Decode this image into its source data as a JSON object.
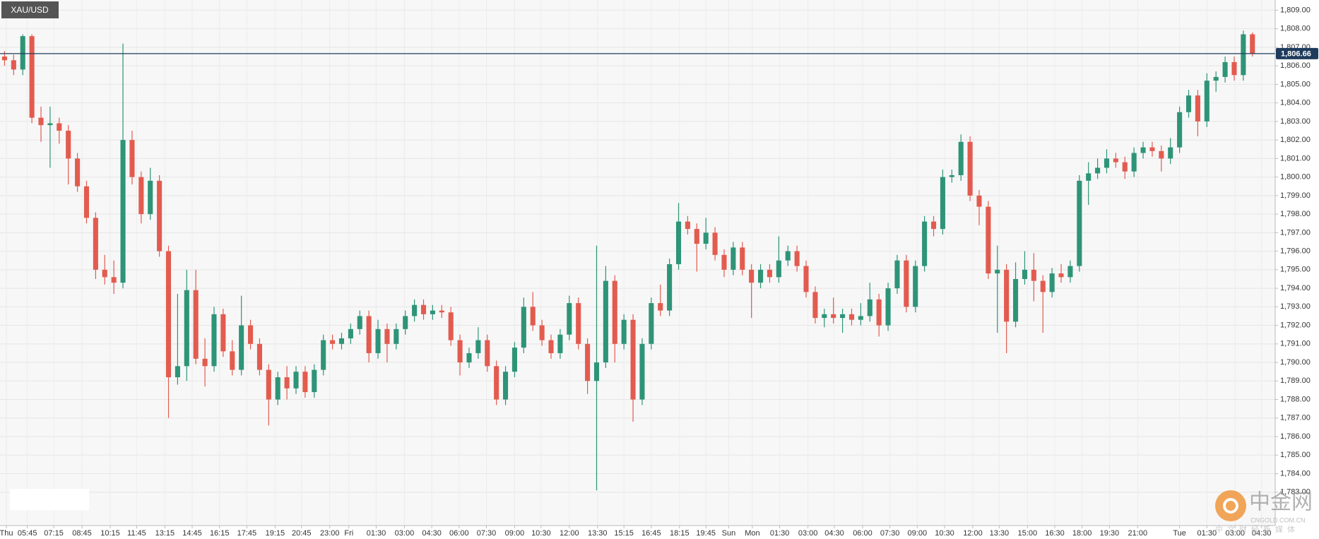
{
  "chart_data": {
    "type": "candlestick",
    "title": "XAU/USD",
    "up_color": "#2e9478",
    "down_color": "#e35b4f",
    "grid": true,
    "xlim": [
      0,
      140
    ],
    "ylim": [
      1781.2,
      1809.55
    ],
    "yticks": [
      {
        "value": 1783,
        "label": "1,783.00"
      },
      {
        "value": 1784,
        "label": "1,784.00"
      },
      {
        "value": 1785,
        "label": "1,785.00"
      },
      {
        "value": 1786,
        "label": "1,786.00"
      },
      {
        "value": 1787,
        "label": "1,787.00"
      },
      {
        "value": 1788,
        "label": "1,788.00"
      },
      {
        "value": 1789,
        "label": "1,789.00"
      },
      {
        "value": 1790,
        "label": "1,790.00"
      },
      {
        "value": 1791,
        "label": "1,791.00"
      },
      {
        "value": 1792,
        "label": "1,792.00"
      },
      {
        "value": 1793,
        "label": "1,793.00"
      },
      {
        "value": 1794,
        "label": "1,794.00"
      },
      {
        "value": 1795,
        "label": "1,795.00"
      },
      {
        "value": 1796,
        "label": "1,796.00"
      },
      {
        "value": 1797,
        "label": "1,797.00"
      },
      {
        "value": 1798,
        "label": "1,798.00"
      },
      {
        "value": 1799,
        "label": "1,799.00"
      },
      {
        "value": 1800,
        "label": "1,800.00"
      },
      {
        "value": 1801,
        "label": "1,801.00"
      },
      {
        "value": 1802,
        "label": "1,802.00"
      },
      {
        "value": 1803,
        "label": "1,803.00"
      },
      {
        "value": 1804,
        "label": "1,804.00"
      },
      {
        "value": 1805,
        "label": "1,805.00"
      },
      {
        "value": 1806,
        "label": "1,806.00"
      },
      {
        "value": 1807,
        "label": "1,807.00"
      },
      {
        "value": 1808,
        "label": "1,808.00"
      },
      {
        "value": 1809,
        "label": "1,809.00"
      }
    ],
    "xticks": [
      {
        "value": 0.7,
        "label": "Thu"
      },
      {
        "value": 3.0,
        "label": "05:45"
      },
      {
        "value": 5.9,
        "label": "07:15"
      },
      {
        "value": 9.0,
        "label": "08:45"
      },
      {
        "value": 12.1,
        "label": "10:15"
      },
      {
        "value": 15.0,
        "label": "11:45"
      },
      {
        "value": 18.1,
        "label": "13:15"
      },
      {
        "value": 21.1,
        "label": "14:45"
      },
      {
        "value": 24.1,
        "label": "16:15"
      },
      {
        "value": 27.1,
        "label": "17:45"
      },
      {
        "value": 30.2,
        "label": "19:15"
      },
      {
        "value": 33.1,
        "label": "20:45"
      },
      {
        "value": 36.2,
        "label": "23:00"
      },
      {
        "value": 38.3,
        "label": "Fri"
      },
      {
        "value": 41.3,
        "label": "01:30"
      },
      {
        "value": 44.4,
        "label": "03:00"
      },
      {
        "value": 47.4,
        "label": "04:30"
      },
      {
        "value": 50.4,
        "label": "06:00"
      },
      {
        "value": 53.4,
        "label": "07:30"
      },
      {
        "value": 56.5,
        "label": "09:00"
      },
      {
        "value": 59.4,
        "label": "10:30"
      },
      {
        "value": 62.5,
        "label": "12:00"
      },
      {
        "value": 65.6,
        "label": "13:30"
      },
      {
        "value": 68.5,
        "label": "15:15"
      },
      {
        "value": 71.5,
        "label": "16:45"
      },
      {
        "value": 74.6,
        "label": "18:15"
      },
      {
        "value": 77.5,
        "label": "19:45"
      },
      {
        "value": 80.0,
        "label": "Sun"
      },
      {
        "value": 82.6,
        "label": "Mon"
      },
      {
        "value": 85.6,
        "label": "01:30"
      },
      {
        "value": 88.7,
        "label": "03:00"
      },
      {
        "value": 91.6,
        "label": "04:30"
      },
      {
        "value": 94.7,
        "label": "06:00"
      },
      {
        "value": 97.7,
        "label": "07:30"
      },
      {
        "value": 100.7,
        "label": "09:00"
      },
      {
        "value": 103.7,
        "label": "10:30"
      },
      {
        "value": 106.8,
        "label": "12:00"
      },
      {
        "value": 109.7,
        "label": "13:30"
      },
      {
        "value": 112.8,
        "label": "15:00"
      },
      {
        "value": 115.8,
        "label": "16:30"
      },
      {
        "value": 118.8,
        "label": "18:00"
      },
      {
        "value": 121.8,
        "label": "19:30"
      },
      {
        "value": 124.9,
        "label": "21:00"
      },
      {
        "value": 129.5,
        "label": "Tue"
      },
      {
        "value": 132.5,
        "label": "01:30"
      },
      {
        "value": 135.6,
        "label": "03:00"
      },
      {
        "value": 138.5,
        "label": "04:30"
      }
    ],
    "last_price": {
      "value": 1806.66,
      "label": "1,806.66",
      "color": "#1f3b5c"
    },
    "open": [
      1806.5,
      1806.3,
      1805.8,
      1807.6,
      1803.2,
      1802.8,
      1802.9,
      1802.5,
      1801.0,
      1799.5,
      1797.8,
      1795.0,
      1794.6,
      1794.3,
      1802.0,
      1800.0,
      1798.0,
      1799.8,
      1796.0,
      1789.2,
      1789.8,
      1793.9,
      1790.2,
      1789.8,
      1792.6,
      1790.6,
      1789.6,
      1792.0,
      1791.0,
      1789.6,
      1788.0,
      1789.2,
      1788.6,
      1789.5,
      1788.4,
      1789.6,
      1791.2,
      1791.0,
      1791.3,
      1791.8,
      1792.5,
      1790.5,
      1791.8,
      1791.0,
      1791.8,
      1792.5,
      1793.1,
      1792.6,
      1792.8,
      1792.7,
      1791.2,
      1790.0,
      1790.5,
      1791.2,
      1789.8,
      1788.0,
      1789.5,
      1790.8,
      1793.0,
      1792.0,
      1791.2,
      1790.5,
      1791.5,
      1793.2,
      1791.0,
      1789.0,
      1790.0,
      1794.4,
      1791.0,
      1792.3,
      1788.0,
      1791.0,
      1793.2,
      1792.8,
      1795.3,
      1797.6,
      1797.2,
      1796.4,
      1797.0,
      1795.8,
      1795.0,
      1796.2,
      1795.0,
      1794.3,
      1795.0,
      1794.6,
      1795.5,
      1796.0,
      1795.2,
      1793.8,
      1792.4,
      1792.6,
      1792.4,
      1792.6,
      1792.3,
      1792.5,
      1793.4,
      1792.0,
      1794.0,
      1795.5,
      1793.0,
      1795.2,
      1797.6,
      1797.2,
      1800.0,
      1800.1,
      1801.9,
      1799.0,
      1798.4,
      1794.8,
      1795.0,
      1792.2,
      1794.5,
      1795.0,
      1794.4,
      1793.8,
      1794.8,
      1794.6,
      1795.2,
      1799.8,
      1800.2,
      1800.5,
      1801.0,
      1800.8,
      1800.3,
      1801.3,
      1801.6,
      1801.4,
      1801.0,
      1801.6,
      1803.5,
      1804.4,
      1803.0,
      1805.2,
      1805.4,
      1806.2,
      1805.5,
      1807.7
    ],
    "high": [
      1806.8,
      1806.6,
      1807.7,
      1807.7,
      1803.8,
      1803.8,
      1803.2,
      1802.8,
      1801.3,
      1799.8,
      1798.1,
      1795.8,
      1795.5,
      1807.2,
      1802.5,
      1800.3,
      1800.5,
      1800.1,
      1796.3,
      1793.7,
      1795.0,
      1795.0,
      1791.3,
      1793.0,
      1792.9,
      1791.2,
      1793.6,
      1792.3,
      1791.3,
      1789.9,
      1789.5,
      1789.8,
      1789.8,
      1789.8,
      1789.9,
      1791.5,
      1791.5,
      1791.6,
      1792.1,
      1792.8,
      1792.8,
      1792.3,
      1792.1,
      1792.1,
      1792.8,
      1793.4,
      1793.4,
      1793.1,
      1793.1,
      1793.0,
      1791.5,
      1790.8,
      1791.9,
      1791.5,
      1790.1,
      1789.8,
      1791.1,
      1793.5,
      1793.8,
      1792.3,
      1791.5,
      1791.8,
      1793.6,
      1793.5,
      1791.3,
      1796.3,
      1795.2,
      1794.7,
      1792.6,
      1792.6,
      1791.3,
      1793.5,
      1794.2,
      1795.6,
      1798.6,
      1797.9,
      1797.5,
      1797.8,
      1797.3,
      1796.1,
      1796.5,
      1796.5,
      1795.3,
      1795.3,
      1795.3,
      1796.8,
      1796.3,
      1796.3,
      1795.5,
      1794.1,
      1792.9,
      1793.5,
      1792.9,
      1792.9,
      1793.2,
      1794.3,
      1793.7,
      1794.3,
      1795.8,
      1795.8,
      1795.5,
      1797.9,
      1797.9,
      1800.4,
      1800.4,
      1802.3,
      1802.2,
      1799.3,
      1798.7,
      1796.3,
      1795.3,
      1795.4,
      1796.0,
      1795.9,
      1794.7,
      1795.1,
      1795.3,
      1795.5,
      1800.1,
      1800.8,
      1801.0,
      1801.5,
      1801.3,
      1801.1,
      1801.6,
      1801.9,
      1801.9,
      1801.7,
      1802.1,
      1803.8,
      1804.7,
      1804.7,
      1805.6,
      1805.7,
      1806.5,
      1806.5,
      1807.9,
      1807.8
    ],
    "low": [
      1806.0,
      1805.5,
      1805.5,
      1802.9,
      1801.9,
      1800.5,
      1801.8,
      1799.6,
      1799.2,
      1797.5,
      1794.5,
      1794.2,
      1793.7,
      1794.0,
      1799.6,
      1797.5,
      1797.7,
      1795.7,
      1787.0,
      1788.8,
      1789.0,
      1789.9,
      1788.7,
      1789.5,
      1790.3,
      1789.3,
      1789.3,
      1790.7,
      1789.3,
      1786.6,
      1787.7,
      1788.0,
      1788.3,
      1788.1,
      1788.1,
      1789.3,
      1790.7,
      1790.7,
      1791.0,
      1791.5,
      1790.0,
      1790.2,
      1790.0,
      1790.7,
      1791.5,
      1792.2,
      1792.3,
      1792.3,
      1792.4,
      1790.9,
      1789.3,
      1789.7,
      1790.2,
      1789.5,
      1787.7,
      1787.7,
      1789.2,
      1790.5,
      1791.7,
      1790.9,
      1790.2,
      1790.2,
      1791.2,
      1790.7,
      1788.3,
      1783.1,
      1789.7,
      1790.0,
      1790.7,
      1786.8,
      1787.7,
      1790.7,
      1792.5,
      1792.5,
      1795.0,
      1796.9,
      1794.9,
      1796.1,
      1795.5,
      1794.6,
      1794.7,
      1794.7,
      1792.4,
      1794.0,
      1794.3,
      1794.3,
      1795.2,
      1794.9,
      1793.5,
      1792.1,
      1791.9,
      1792.1,
      1791.6,
      1792.0,
      1792.0,
      1792.2,
      1791.4,
      1791.7,
      1793.7,
      1792.7,
      1792.7,
      1794.9,
      1796.8,
      1796.9,
      1799.7,
      1799.8,
      1798.7,
      1797.4,
      1794.5,
      1791.6,
      1790.5,
      1791.9,
      1794.2,
      1793.3,
      1791.6,
      1793.5,
      1794.3,
      1794.3,
      1794.9,
      1798.5,
      1799.9,
      1800.2,
      1800.5,
      1799.9,
      1800.0,
      1801.0,
      1801.1,
      1800.3,
      1800.7,
      1801.3,
      1803.2,
      1802.2,
      1802.7,
      1804.6,
      1805.1,
      1805.2,
      1805.2,
      1806.5
    ],
    "close": [
      1806.3,
      1805.8,
      1807.6,
      1803.2,
      1802.8,
      1802.9,
      1802.5,
      1801.0,
      1799.5,
      1797.8,
      1795.0,
      1794.6,
      1794.3,
      1802.0,
      1800.0,
      1798.0,
      1799.8,
      1796.0,
      1789.2,
      1789.8,
      1793.9,
      1790.2,
      1789.8,
      1792.6,
      1790.6,
      1789.6,
      1792.0,
      1791.0,
      1789.6,
      1788.0,
      1789.2,
      1788.6,
      1789.5,
      1788.4,
      1789.6,
      1791.2,
      1791.0,
      1791.3,
      1791.8,
      1792.5,
      1790.5,
      1791.8,
      1791.0,
      1791.8,
      1792.5,
      1793.1,
      1792.6,
      1792.8,
      1792.7,
      1791.2,
      1790.0,
      1790.5,
      1791.2,
      1789.8,
      1788.0,
      1789.5,
      1790.8,
      1793.0,
      1792.0,
      1791.2,
      1790.5,
      1791.5,
      1793.2,
      1791.0,
      1789.0,
      1790.0,
      1794.4,
      1791.0,
      1792.3,
      1788.0,
      1791.0,
      1793.2,
      1792.8,
      1795.3,
      1797.6,
      1797.2,
      1796.4,
      1797.0,
      1795.8,
      1795.0,
      1796.2,
      1795.0,
      1794.3,
      1795.0,
      1794.6,
      1795.5,
      1796.0,
      1795.2,
      1793.8,
      1792.4,
      1792.6,
      1792.4,
      1792.6,
      1792.3,
      1792.5,
      1793.4,
      1792.0,
      1794.0,
      1795.5,
      1793.0,
      1795.2,
      1797.6,
      1797.2,
      1800.0,
      1800.1,
      1801.9,
      1799.0,
      1798.4,
      1794.8,
      1795.0,
      1792.2,
      1794.5,
      1795.0,
      1794.4,
      1793.8,
      1794.8,
      1794.6,
      1795.2,
      1799.8,
      1800.2,
      1800.5,
      1801.0,
      1800.8,
      1800.3,
      1801.3,
      1801.6,
      1801.4,
      1801.0,
      1801.6,
      1803.5,
      1804.4,
      1803.0,
      1805.2,
      1805.4,
      1806.2,
      1805.5,
      1807.7,
      1806.66
    ]
  },
  "watermark": {
    "name": "中金网",
    "domain": "CNGOLD.COM.CN",
    "slogan": "中文财经新媒体"
  }
}
